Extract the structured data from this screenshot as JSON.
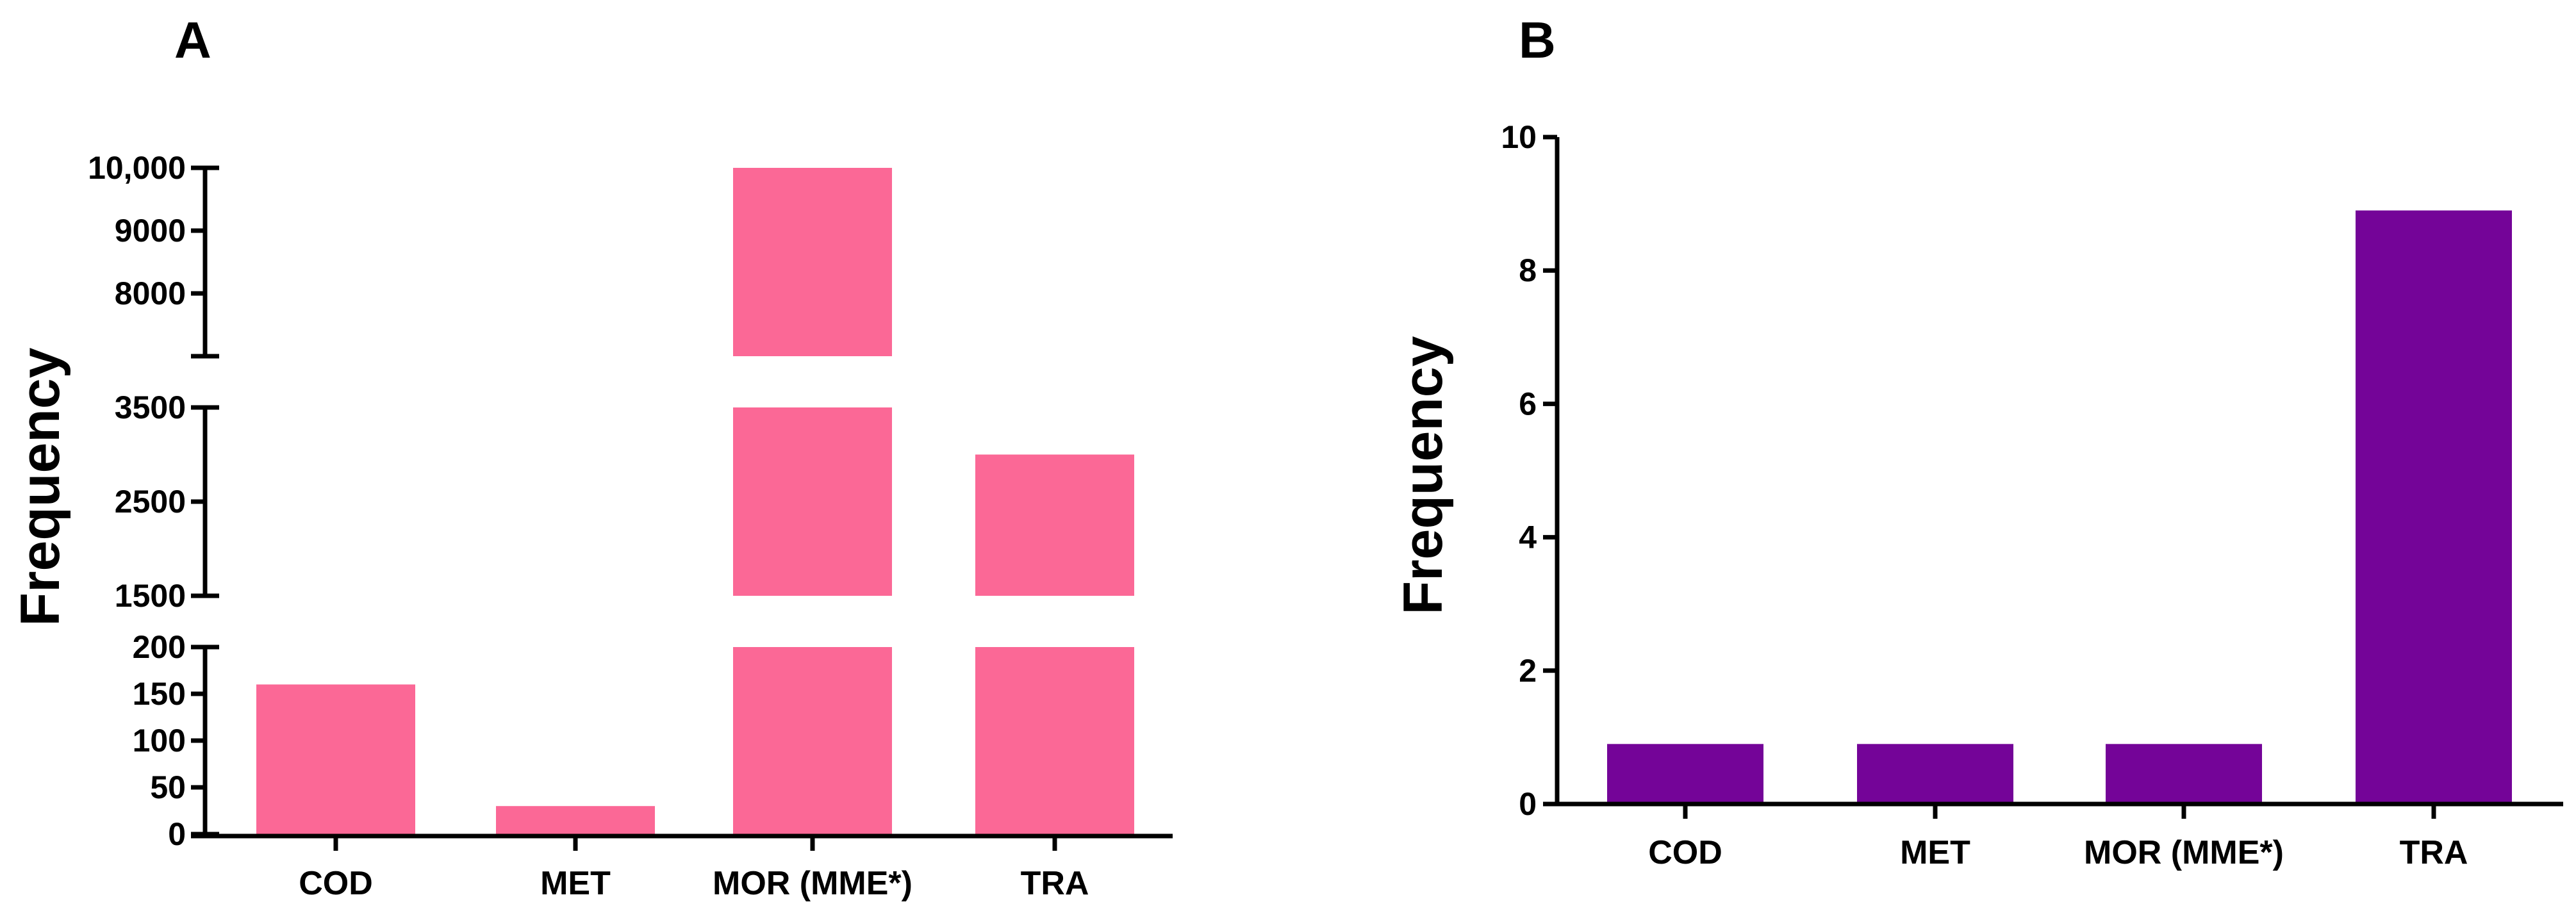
{
  "chart_data": [
    {
      "panel": "A",
      "type": "bar",
      "ylabel": "Frequency",
      "xlabel": "",
      "color": "#fb6896",
      "categories": [
        "COD",
        "MET",
        "MOR (MME*)",
        "TRA"
      ],
      "values": [
        160,
        30,
        10000,
        3000
      ],
      "y_axis_segments": [
        {
          "range": [
            0,
            200
          ],
          "ticks": [
            "0",
            "50",
            "100",
            "150",
            "200"
          ]
        },
        {
          "range": [
            1500,
            3500
          ],
          "ticks": [
            "1500",
            "2500",
            "3500"
          ]
        },
        {
          "range": [
            7000,
            10000
          ],
          "ticks": [
            "8000",
            "9000",
            "10,000"
          ]
        }
      ],
      "grid": false
    },
    {
      "panel": "B",
      "type": "bar",
      "ylabel": "Frequency",
      "xlabel": "",
      "color": "#740498",
      "categories": [
        "COD",
        "MET",
        "MOR (MME*)",
        "TRA"
      ],
      "values": [
        0.9,
        0.9,
        0.9,
        8.9
      ],
      "ylim": [
        0,
        10
      ],
      "yticks": [
        "0",
        "2",
        "4",
        "6",
        "8",
        "10"
      ],
      "grid": false
    }
  ]
}
